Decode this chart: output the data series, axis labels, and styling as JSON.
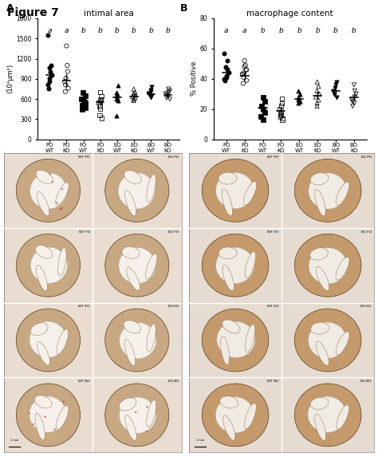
{
  "figure_label": "Figure 7",
  "panel_A": {
    "title": "intimal area",
    "ylabel": "(10³μm²)",
    "ylim": [
      0,
      1800
    ],
    "yticks": [
      0,
      300,
      600,
      900,
      1200,
      1500,
      1800
    ],
    "xlabel_groups": [
      "PO WT",
      "PO KO",
      "FO WT",
      "FO KO",
      "EO WT",
      "EO KO",
      "BO WT",
      "BO KO"
    ],
    "sig_labels": [
      "a",
      "a",
      "b",
      "b",
      "b",
      "b",
      "b",
      "b"
    ],
    "group_data_A": {
      "PO WT": [
        1550,
        1100,
        1060,
        1010,
        960,
        910,
        860,
        810,
        760
      ],
      "PO KO": [
        1390,
        1100,
        1010,
        910,
        860,
        810,
        760,
        710
      ],
      "FO WT": [
        700,
        650,
        600,
        570,
        540,
        510,
        490,
        470,
        450
      ],
      "FO KO": [
        700,
        645,
        600,
        578,
        548,
        518,
        488,
        458,
        355,
        318
      ],
      "EO WT": [
        800,
        700,
        668,
        648,
        618,
        598,
        578,
        355
      ],
      "EO KO": [
        748,
        698,
        678,
        658,
        638,
        618,
        598,
        578
      ],
      "BO WT": [
        778,
        738,
        708,
        688,
        668,
        648,
        628
      ],
      "BO KO": [
        748,
        718,
        698,
        678,
        658,
        638,
        618,
        598
      ]
    },
    "means_A": [
      958,
      878,
      578,
      558,
      628,
      638,
      678,
      658
    ],
    "mean_errors_A": [
      100,
      88,
      33,
      48,
      53,
      28,
      28,
      28
    ]
  },
  "panel_B": {
    "title": "macrophage content",
    "ylabel": "% Positive",
    "ylim": [
      0,
      80
    ],
    "yticks": [
      0,
      20,
      40,
      60,
      80
    ],
    "xlabel_groups": [
      "PO WT",
      "PO KO",
      "FO WT",
      "FO KO",
      "EO WT",
      "EO KO",
      "BO WT",
      "BO KO"
    ],
    "sig_labels": [
      "a",
      "a",
      "b",
      "b",
      "b",
      "b",
      "b",
      "b"
    ],
    "group_data_B": {
      "PO WT": [
        57,
        52,
        48,
        46,
        44,
        42,
        41,
        40,
        39
      ],
      "PO KO": [
        52,
        49,
        46,
        44,
        43,
        41,
        39,
        37,
        48,
        46,
        43
      ],
      "FO WT": [
        28,
        25,
        22,
        20,
        18,
        15,
        13
      ],
      "FO KO": [
        27,
        24,
        22,
        20,
        18,
        17,
        16,
        15,
        14,
        13
      ],
      "EO WT": [
        32,
        30,
        28,
        27,
        26,
        25,
        24
      ],
      "EO KO": [
        38,
        35,
        32,
        30,
        28,
        26,
        24,
        22
      ],
      "BO WT": [
        38,
        36,
        34,
        32,
        30,
        28
      ],
      "BO KO": [
        36,
        32,
        30,
        28,
        26,
        25,
        24,
        22
      ]
    },
    "means_B": [
      44,
      42,
      21,
      19,
      27,
      29,
      32,
      28
    ],
    "mean_errors_B": [
      3.0,
      2.5,
      2.0,
      2.0,
      2.0,
      2.5,
      2.0,
      2.0
    ]
  },
  "hist_labels_left": [
    [
      "WT PO",
      "KO PO"
    ],
    [
      "WT FO",
      "KO FO"
    ],
    [
      "WT EO",
      "KO EO"
    ],
    [
      "WT BO",
      "KO BO"
    ]
  ],
  "hist_labels_right": [
    [
      "WT PO",
      "KO PO"
    ],
    [
      "WT FO",
      "KO FO"
    ],
    [
      "WT EO",
      "KO EO"
    ],
    [
      "WT BO",
      "KO BO"
    ]
  ]
}
